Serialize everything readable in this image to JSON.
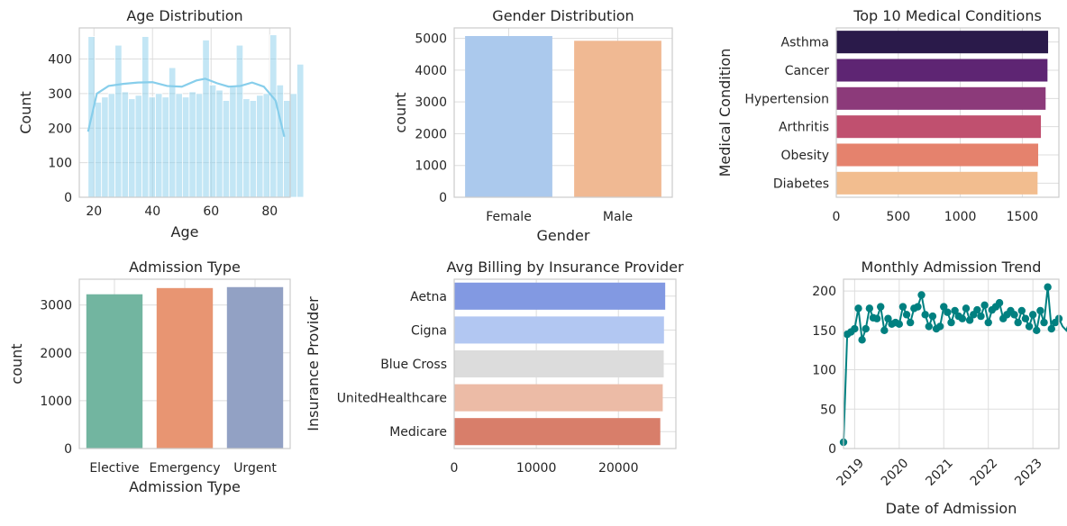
{
  "chart_data": [
    {
      "type": "histogram",
      "title": "Age Distribution",
      "xlabel": "Age",
      "ylabel": "Count",
      "xlim": [
        15,
        87
      ],
      "ylim": [
        0,
        490
      ],
      "xticks": [
        "20",
        "40",
        "60",
        "80"
      ],
      "yticks": [
        "0",
        "100",
        "200",
        "300",
        "400"
      ],
      "bin_start": 18,
      "bin_width": 2.3,
      "values": [
        465,
        275,
        290,
        300,
        440,
        305,
        285,
        295,
        465,
        290,
        300,
        290,
        375,
        300,
        290,
        305,
        300,
        455,
        325,
        310,
        280,
        320,
        440,
        285,
        280,
        295,
        300,
        470,
        325,
        280,
        300,
        385
      ],
      "kde": {
        "x": [
          18,
          21,
          25,
          30,
          35,
          40,
          45,
          50,
          55,
          58,
          62,
          66,
          70,
          74,
          78,
          82,
          85
        ],
        "y": [
          190,
          300,
          322,
          328,
          332,
          333,
          322,
          320,
          338,
          343,
          330,
          320,
          322,
          332,
          320,
          280,
          175
        ]
      },
      "bar_color": "#87ceeb",
      "line_color": "#87ceeb",
      "grid": true
    },
    {
      "type": "bar",
      "title": "Gender Distribution",
      "xlabel": "Gender",
      "ylabel": "count",
      "categories": [
        "Female",
        "Male"
      ],
      "values": [
        5075,
        4925
      ],
      "ylim": [
        0,
        5330
      ],
      "yticks": [
        "0",
        "1000",
        "2000",
        "3000",
        "4000",
        "5000"
      ],
      "colors": [
        "#abc9ed",
        "#f0b993"
      ],
      "grid": true
    },
    {
      "type": "barh",
      "title": "Top 10 Medical Conditions",
      "xlabel": "",
      "ylabel": "Medical Condition",
      "categories": [
        "Asthma",
        "Cancer",
        "Hypertension",
        "Arthritis",
        "Obesity",
        "Diabetes"
      ],
      "values": [
        1708,
        1703,
        1688,
        1650,
        1628,
        1623
      ],
      "xlim": [
        0,
        1795
      ],
      "xticks": [
        "0",
        "500",
        "1000",
        "1500"
      ],
      "colors": [
        "#2a1a4a",
        "#5e2573",
        "#8c3a7a",
        "#c0506f",
        "#e5826d",
        "#f2bd8f"
      ],
      "grid": true
    },
    {
      "type": "bar",
      "title": "Admission Type",
      "xlabel": "Admission Type",
      "ylabel": "count",
      "categories": [
        "Elective",
        "Emergency",
        "Urgent"
      ],
      "values": [
        3225,
        3355,
        3375
      ],
      "ylim": [
        0,
        3540
      ],
      "yticks": [
        "0",
        "1000",
        "2000",
        "3000"
      ],
      "colors": [
        "#72b5a0",
        "#e89572",
        "#92a1c4"
      ],
      "grid": true
    },
    {
      "type": "barh",
      "title": "Avg Billing by Insurance Provider",
      "xlabel": "",
      "ylabel": "Insurance Provider",
      "categories": [
        "Aetna",
        "Cigna",
        "Blue Cross",
        "UnitedHealthcare",
        "Medicare"
      ],
      "values": [
        25700,
        25550,
        25520,
        25400,
        25100
      ],
      "xlim": [
        0,
        27000
      ],
      "xticks": [
        "0",
        "10000",
        "20000"
      ],
      "colors": [
        "#8299e2",
        "#b2c7f2",
        "#dcdcdc",
        "#ecbba6",
        "#d87e6a"
      ],
      "grid": true
    },
    {
      "type": "line",
      "title": "Monthly Admission Trend",
      "xlabel": "Date of Admission",
      "ylabel": "",
      "x_start": "2018-10",
      "xlim": [
        "2018-10",
        "2023-08"
      ],
      "ylim": [
        0,
        215
      ],
      "yticks": [
        "0",
        "50",
        "100",
        "150",
        "200"
      ],
      "xticks": [
        "2019",
        "2020",
        "2021",
        "2022",
        "2023"
      ],
      "values": [
        8,
        145,
        148,
        152,
        178,
        138,
        152,
        178,
        166,
        165,
        180,
        150,
        165,
        158,
        160,
        158,
        180,
        170,
        160,
        178,
        180,
        195,
        170,
        155,
        168,
        152,
        155,
        180,
        173,
        160,
        175,
        168,
        165,
        178,
        163,
        170,
        176,
        168,
        182,
        160,
        176,
        180,
        185,
        165,
        170,
        175,
        170,
        160,
        175,
        165,
        155,
        170,
        150,
        175,
        160,
        205,
        152,
        160,
        165,
        155,
        150,
        163,
        148,
        160,
        172,
        150,
        185,
        155,
        175
      ],
      "color": "#008080",
      "grid": true
    }
  ]
}
